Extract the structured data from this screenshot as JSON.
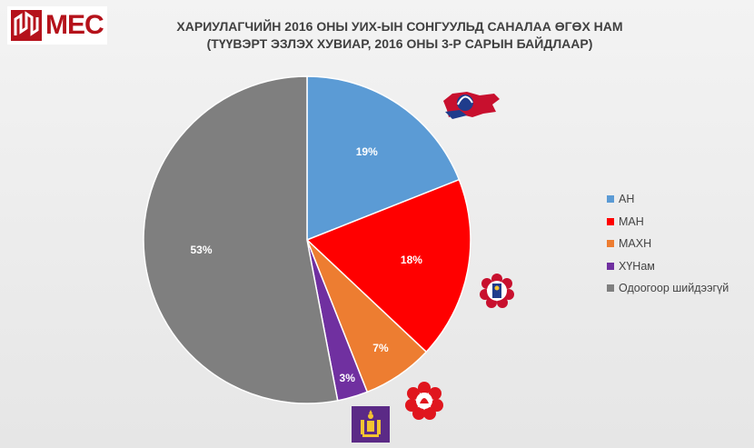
{
  "brand": {
    "name": "MEC",
    "accent": "#b5121b"
  },
  "title_line1": "ХАРИУЛАГЧИЙН 2016 ОНЫ УИХ-ЫН СОНГУУЛЬД САНАЛАА ӨГӨХ НАМ",
  "title_line2": "(ТҮҮВЭРТ ЭЗЛЭХ ХУВИАР, 2016 ОНЫ 3-Р САРЫН БАЙДЛААР)",
  "chart_data": {
    "type": "pie",
    "title": "ХАРИУЛАГЧИЙН 2016 ОНЫ УИХ-ЫН СОНГУУЛЬД САНАЛАА ӨГӨХ НАМ (ТҮҮВЭРТ ЭЗЛЭХ ХУВИАР, 2016 ОНЫ 3-Р САРЫН БАЙДЛААР)",
    "categories": [
      "АН",
      "МАН",
      "МАХН",
      "ХҮНам",
      "Одоогоор шийдээгүй"
    ],
    "values": [
      19,
      18,
      7,
      3,
      53
    ],
    "data_labels": [
      "19%",
      "18%",
      "7%",
      "3%",
      "53%"
    ],
    "colors": [
      "#5b9bd5",
      "#ff0000",
      "#ed7d31",
      "#7030a0",
      "#7f7f7f"
    ],
    "legend_position": "right"
  },
  "emblems": [
    {
      "name": "ah-party-emblem-icon",
      "party": "АН"
    },
    {
      "name": "man-party-emblem-icon",
      "party": "МАН"
    },
    {
      "name": "mahn-party-emblem-icon",
      "party": "МАХН"
    },
    {
      "name": "hun-party-emblem-icon",
      "party": "ХҮНам"
    }
  ]
}
